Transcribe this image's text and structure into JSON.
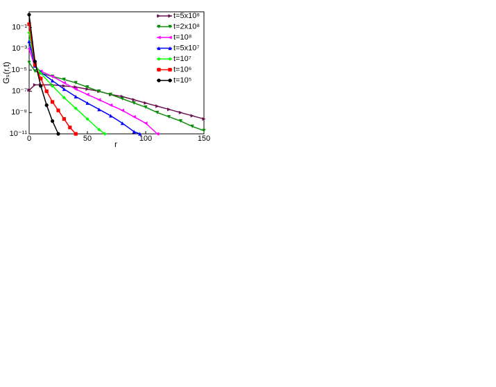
{
  "chart_data": {
    "type": "line",
    "x_label": "r",
    "y_label": "Gₛ(r,t)",
    "log_y": true,
    "xlim": [
      0,
      150
    ],
    "xticks": [
      0,
      50,
      100,
      150
    ],
    "ylim": [
      1e-11,
      3
    ],
    "yticks": [
      {
        "value": 0.1,
        "label": "10⁻¹"
      },
      {
        "value": 0.001,
        "label": "10⁻³"
      },
      {
        "value": 1e-05,
        "label": "10⁻⁵"
      },
      {
        "value": 1e-07,
        "label": "10⁻⁷"
      },
      {
        "value": 1e-09,
        "label": "10⁻⁹"
      },
      {
        "value": 1e-11,
        "label": "10⁻¹¹"
      }
    ],
    "legend": "top-right",
    "series": [
      {
        "name": "t=5x10⁸",
        "color": "#6b1050",
        "marker": "right",
        "x": [
          0,
          5,
          10,
          20,
          30,
          40,
          50,
          60,
          70,
          80,
          90,
          100,
          110,
          120,
          130,
          140,
          150
        ],
        "values": [
          1.3e-07,
          4e-07,
          4e-07,
          4e-07,
          3.2e-07,
          2.5e-07,
          1.6e-07,
          1e-07,
          5e-08,
          3.2e-08,
          1.6e-08,
          7.9e-09,
          4e-09,
          2e-09,
          1e-09,
          5e-10,
          2.5e-10
        ]
      },
      {
        "name": "t=2x10⁸",
        "color": "#0b8a0b",
        "marker": "down",
        "x": [
          0,
          5,
          10,
          20,
          30,
          40,
          50,
          60,
          70,
          80,
          90,
          100,
          110,
          120,
          130,
          140,
          150
        ],
        "values": [
          5e-05,
          7.9e-06,
          5e-06,
          2.5e-06,
          1.3e-06,
          6.3e-07,
          2.5e-07,
          1e-07,
          5e-08,
          2e-08,
          7.9e-09,
          3.2e-09,
          1e-09,
          4e-10,
          1.6e-10,
          5e-11,
          2e-11
        ]
      },
      {
        "name": "t=10⁸",
        "color": "#ff00ff",
        "marker": "left",
        "x": [
          0,
          5,
          10,
          20,
          30,
          40,
          50,
          60,
          70,
          80,
          90,
          100,
          110
        ],
        "values": [
          0.001,
          2e-05,
          7.9e-06,
          2.5e-06,
          6.3e-07,
          1.6e-07,
          5e-08,
          1.6e-08,
          5e-09,
          1.6e-09,
          4e-10,
          1e-10,
          1e-11
        ]
      },
      {
        "name": "t=5x10⁷",
        "color": "#0000ff",
        "marker": "up",
        "x": [
          0,
          5,
          10,
          20,
          30,
          40,
          50,
          60,
          70,
          80,
          90,
          95
        ],
        "values": [
          0.005,
          2.5e-05,
          6.3e-06,
          1e-06,
          1.6e-07,
          3.2e-08,
          7.9e-09,
          2e-09,
          5e-10,
          1e-10,
          1.6e-11,
          1e-11
        ]
      },
      {
        "name": "t=10⁷",
        "color": "#00ff00",
        "marker": "diamond",
        "x": [
          0,
          5,
          10,
          20,
          30,
          40,
          50,
          60,
          65
        ],
        "values": [
          0.032,
          3.2e-05,
          5e-06,
          3.2e-07,
          2.5e-08,
          2.5e-09,
          2.5e-10,
          2.5e-11,
          1e-11
        ]
      },
      {
        "name": "t=10⁶",
        "color": "#ff0000",
        "marker": "square",
        "x": [
          0,
          5,
          10,
          15,
          20,
          25,
          30,
          35,
          40
        ],
        "values": [
          0.2,
          3.2e-05,
          1.6e-06,
          1e-07,
          1e-08,
          1.6e-09,
          2.5e-10,
          4e-11,
          1e-11
        ]
      },
      {
        "name": "t=10⁵",
        "color": "#000000",
        "marker": "circle",
        "x": [
          0,
          5,
          10,
          15,
          20,
          25
        ],
        "values": [
          1.6,
          6.3e-05,
          3.2e-07,
          5e-09,
          1.6e-10,
          1e-11
        ]
      }
    ]
  }
}
